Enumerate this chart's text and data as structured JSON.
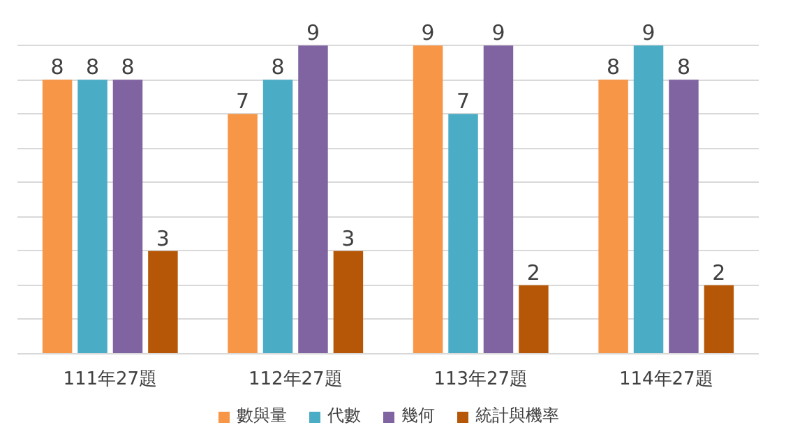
{
  "chart_data": {
    "type": "bar",
    "categories": [
      "111年27題",
      "112年27題",
      "113年27題",
      "114年27題"
    ],
    "series": [
      {
        "name": "數與量",
        "color": "#f79646",
        "values": [
          8,
          7,
          9,
          8
        ]
      },
      {
        "name": "代數",
        "color": "#4bacc6",
        "values": [
          8,
          8,
          7,
          9
        ]
      },
      {
        "name": "幾何",
        "color": "#8064a2",
        "values": [
          8,
          9,
          9,
          8
        ]
      },
      {
        "name": "統計與機率",
        "color": "#b65708",
        "values": [
          3,
          3,
          2,
          2
        ]
      }
    ],
    "ylim": [
      0,
      9
    ],
    "yticks": [
      {
        "value": 0,
        "label": null
      },
      {
        "value": 1,
        "label": null
      },
      {
        "value": 2,
        "label": null
      },
      {
        "value": 3,
        "label": null
      },
      {
        "value": 4,
        "label": null
      },
      {
        "value": 5,
        "label": null
      },
      {
        "value": 6,
        "label": null
      },
      {
        "value": 7,
        "label": null
      },
      {
        "value": 8,
        "label": null
      },
      {
        "value": 9,
        "label": null
      }
    ],
    "grid": "y",
    "legend": "bottom",
    "data_labels": true,
    "tick_labels": "x"
  }
}
